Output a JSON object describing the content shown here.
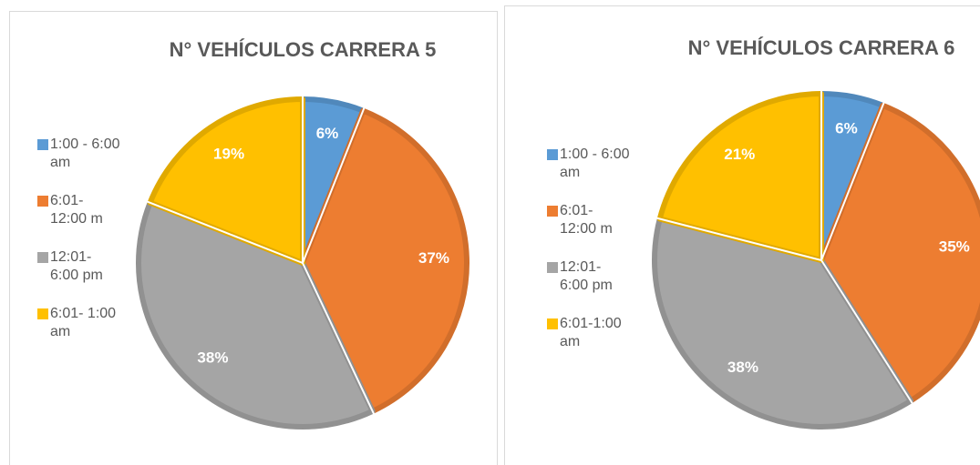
{
  "chart_data": [
    {
      "type": "pie",
      "title": "N° VEHÍCULOS CARRERA 5",
      "categories": [
        "1:00 - 6:00 am",
        "6:01- 12:00 m",
        "12:01- 6:00 pm",
        "6:01- 1:00 am"
      ],
      "values": [
        6,
        37,
        38,
        19
      ],
      "value_labels": [
        "6%",
        "37%",
        "38%",
        "19%"
      ],
      "colors": [
        "#5b9bd5",
        "#ed7d31",
        "#a5a5a5",
        "#ffc000"
      ]
    },
    {
      "type": "pie",
      "title": "N° VEHÍCULOS CARRERA 6",
      "categories": [
        "1:00 - 6:00 am",
        "6:01- 12:00 m",
        "12:01- 6:00 pm",
        "6:01-1:00 am"
      ],
      "values": [
        6,
        35,
        38,
        21
      ],
      "value_labels": [
        "6%",
        "35%",
        "38%",
        "21%"
      ],
      "colors": [
        "#5b9bd5",
        "#ed7d31",
        "#a5a5a5",
        "#ffc000"
      ]
    }
  ]
}
